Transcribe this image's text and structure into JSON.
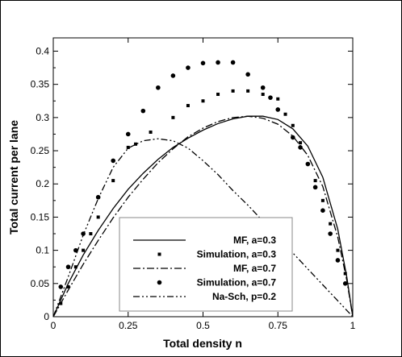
{
  "chart_data": {
    "type": "line",
    "title": "",
    "xlabel": "Total density n",
    "ylabel": "Total current per lane",
    "xlim": [
      0,
      1
    ],
    "ylim": [
      0,
      0.42
    ],
    "x_ticks": [
      "0",
      "0.25",
      "0.5",
      "0.75",
      "1"
    ],
    "y_ticks": [
      "0",
      "0.05",
      "0.1",
      "0.15",
      "0.2",
      "0.25",
      "0.3",
      "0.35",
      "0.4"
    ],
    "grid": false,
    "legend_position": "bottom-center",
    "series": [
      {
        "name": "MF, a=0.3",
        "style": "solid",
        "x": [
          0,
          0.05,
          0.1,
          0.15,
          0.2,
          0.25,
          0.3,
          0.35,
          0.4,
          0.45,
          0.5,
          0.55,
          0.6,
          0.65,
          0.7,
          0.75,
          0.8,
          0.85,
          0.9,
          0.95,
          0.98,
          1.0
        ],
        "y": [
          0,
          0.05,
          0.093,
          0.13,
          0.163,
          0.192,
          0.216,
          0.237,
          0.255,
          0.269,
          0.281,
          0.291,
          0.298,
          0.302,
          0.302,
          0.297,
          0.283,
          0.257,
          0.21,
          0.132,
          0.06,
          0
        ]
      },
      {
        "name": "Simulation, a=0.3",
        "style": "square-markers",
        "x": [
          0.025,
          0.05,
          0.075,
          0.1,
          0.125,
          0.15,
          0.2,
          0.25,
          0.275,
          0.325,
          0.4,
          0.45,
          0.5,
          0.55,
          0.6,
          0.65,
          0.7,
          0.75,
          0.775,
          0.8,
          0.825,
          0.85,
          0.875,
          0.9,
          0.925,
          0.95,
          0.975
        ],
        "y": [
          0.02,
          0.045,
          0.075,
          0.1,
          0.125,
          0.15,
          0.205,
          0.255,
          0.26,
          0.278,
          0.3,
          0.318,
          0.325,
          0.335,
          0.34,
          0.34,
          0.335,
          0.328,
          0.305,
          0.288,
          0.262,
          0.23,
          0.205,
          0.175,
          0.14,
          0.1,
          0.065
        ]
      },
      {
        "name": "MF, a=0.7",
        "style": "dash-dot",
        "x": [
          0,
          0.05,
          0.1,
          0.15,
          0.2,
          0.25,
          0.3,
          0.35,
          0.4,
          0.45,
          0.5,
          0.55,
          0.6,
          0.65,
          0.7,
          0.75,
          0.8,
          0.85,
          0.9,
          0.95,
          0.98,
          1.0
        ],
        "y": [
          0,
          0.04,
          0.079,
          0.115,
          0.149,
          0.18,
          0.207,
          0.232,
          0.253,
          0.271,
          0.284,
          0.294,
          0.3,
          0.302,
          0.299,
          0.29,
          0.272,
          0.243,
          0.196,
          0.12,
          0.055,
          0
        ]
      },
      {
        "name": "Simulation, a=0.7",
        "style": "circle-markers",
        "x": [
          0.025,
          0.05,
          0.075,
          0.1,
          0.15,
          0.2,
          0.25,
          0.3,
          0.35,
          0.4,
          0.45,
          0.5,
          0.55,
          0.6,
          0.65,
          0.7,
          0.725,
          0.75,
          0.8,
          0.825,
          0.85,
          0.875,
          0.9,
          0.925,
          0.95,
          0.975
        ],
        "y": [
          0.045,
          0.075,
          0.1,
          0.125,
          0.18,
          0.235,
          0.275,
          0.31,
          0.345,
          0.363,
          0.375,
          0.382,
          0.383,
          0.383,
          0.365,
          0.345,
          0.33,
          0.312,
          0.27,
          0.255,
          0.23,
          0.195,
          0.16,
          0.125,
          0.085,
          0.05
        ]
      },
      {
        "name": "Na-Sch, p=0.2",
        "style": "dash-dot-dot",
        "x": [
          0,
          0.05,
          0.1,
          0.15,
          0.2,
          0.25,
          0.3,
          0.35,
          0.4,
          0.45,
          0.5,
          0.55,
          0.6,
          0.65,
          0.7,
          0.75,
          0.8,
          0.85,
          0.9,
          0.95,
          1.0
        ],
        "y": [
          0,
          0.06,
          0.123,
          0.178,
          0.225,
          0.254,
          0.265,
          0.268,
          0.265,
          0.254,
          0.235,
          0.214,
          0.19,
          0.168,
          0.144,
          0.12,
          0.096,
          0.072,
          0.048,
          0.024,
          0
        ]
      }
    ]
  }
}
